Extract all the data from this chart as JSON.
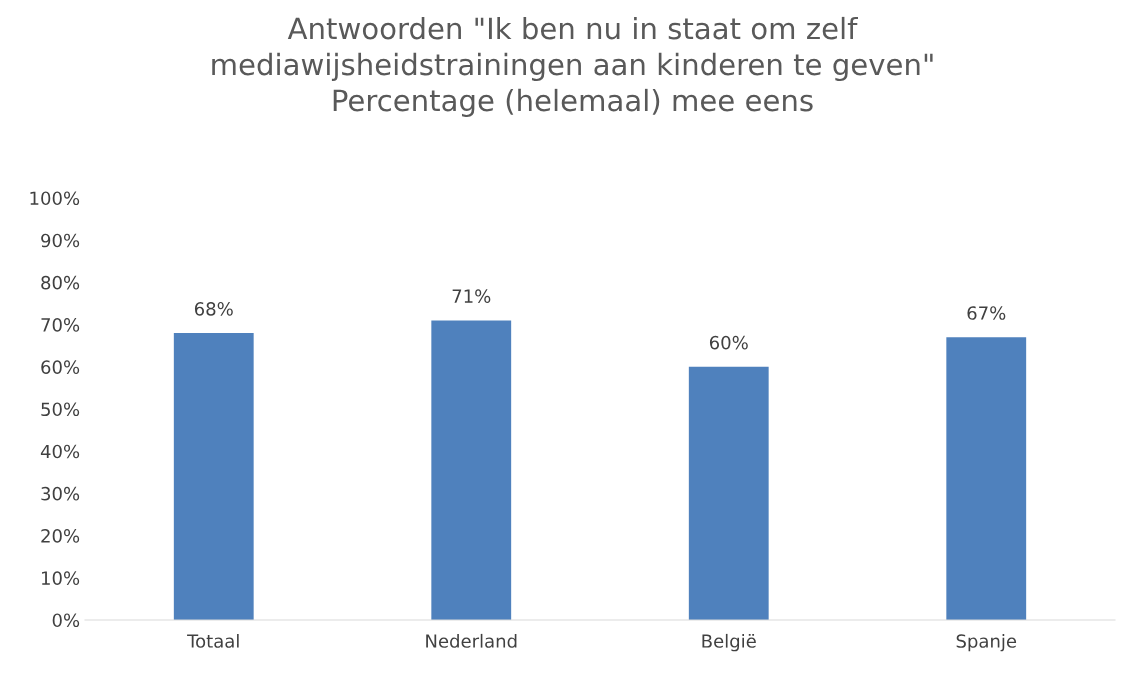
{
  "chart_data": {
    "type": "bar",
    "title": "Antwoorden \"Ik ben nu in staat om zelf\nmediawijsheidstrainingen aan kinderen te geven\"\nPercentage (helemaal) mee eens",
    "categories": [
      "Totaal",
      "Nederland",
      "België",
      "Spanje"
    ],
    "values": [
      68,
      71,
      60,
      67
    ],
    "value_labels": [
      "68%",
      "71%",
      "60%",
      "67%"
    ],
    "color": "#4f81bd",
    "ylim": [
      0,
      100
    ],
    "yticks": [
      {
        "value": 0,
        "label": "0%"
      },
      {
        "value": 10,
        "label": "10%"
      },
      {
        "value": 20,
        "label": "20%"
      },
      {
        "value": 30,
        "label": "30%"
      },
      {
        "value": 40,
        "label": "40%"
      },
      {
        "value": 50,
        "label": "50%"
      },
      {
        "value": 60,
        "label": "60%"
      },
      {
        "value": 70,
        "label": "70%"
      },
      {
        "value": 80,
        "label": "80%"
      },
      {
        "value": 90,
        "label": "90%"
      },
      {
        "value": 100,
        "label": "100%"
      }
    ],
    "grid": false,
    "legend": false
  }
}
